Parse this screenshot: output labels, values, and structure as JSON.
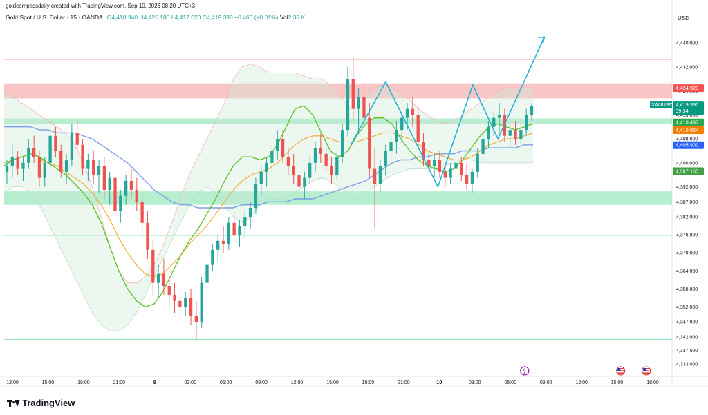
{
  "header": {
    "credit": "goldcompassdaily created with TradingView.com, Sep 10, 2026 08:20 UTC+3",
    "symbol": "Gold Spot / U.S. Dollar · 15 · OANDA",
    "o_label": "O",
    "o_value": "4,418.940",
    "h_label": "H",
    "h_value": "4,420.180",
    "l_label": "L",
    "l_value": "4,417.020",
    "c_label": "C",
    "c_value": "4,419.390",
    "change": "+0.460 (+0.01%)",
    "vol_label": "Vol",
    "vol_value": "2.32 K"
  },
  "axis": {
    "currency": "USD"
  },
  "brand": "TradingView",
  "colors": {
    "up": "#26a69a",
    "down": "#ef5350",
    "sma": "#7e9ee8",
    "ema_fast": "#58c21e",
    "ema_slow": "#f4a62a",
    "resistance_zone": "#f7b3b3",
    "support_zone": "#9ee8bf",
    "projection": "#1fb2d6"
  },
  "chart_data": {
    "type": "candlestick",
    "symbol": "XAUUSD",
    "timeframe": "15",
    "ylim": [
      4330,
      4446
    ],
    "y_ticks": [
      4440,
      4432,
      4424,
      4416,
      4408,
      4400,
      4392,
      4387,
      4382,
      4376,
      4370,
      4364,
      4358,
      4352,
      4347,
      4342,
      4337.5,
      4333
    ],
    "y_tick_labels": [
      "4,440.000",
      "4,432.000",
      "4,424.000",
      "4,416.000",
      "4,408.000",
      "4,400.000",
      "4,392.000",
      "4,387.000",
      "4,382.000",
      "4,376.000",
      "4,370.000",
      "4,364.000",
      "4,358.000",
      "4,352.000",
      "4,347.000",
      "4,342.000",
      "4,337.500",
      "4,333.000"
    ],
    "x_ticks": [
      "12:00",
      "15:00",
      "18:00",
      "21:00",
      "9",
      "03:00",
      "06:00",
      "09:00",
      "12:00",
      "15:00",
      "18:00",
      "21:00",
      "10",
      "03:00",
      "06:00",
      "09:00",
      "12:00",
      "15:00",
      "18:00"
    ],
    "price_labels": [
      {
        "label": "",
        "value": "4,424.923",
        "price": 4424.9,
        "color": "#ef5350"
      },
      {
        "label": "XAUUSD",
        "value": "4,419.390",
        "sub": "09:34",
        "price": 4419.4,
        "color": "#089981"
      },
      {
        "label": "",
        "value": "4,413.497",
        "price": 4413.5,
        "color": "#2ba84a"
      },
      {
        "label": "",
        "value": "4,410.864",
        "price": 4410.9,
        "color": "#f57c00"
      },
      {
        "label": "",
        "value": "4,405.900",
        "price": 4405.9,
        "color": "#2962ff"
      },
      {
        "label": "",
        "value": "4,397.165",
        "price": 4397.2,
        "color": "#43a047"
      }
    ],
    "zones": [
      {
        "name": "resistance",
        "from": 4421.5,
        "to": 4426.5
      },
      {
        "name": "support_top",
        "from": 4413.0,
        "to": 4414.8
      },
      {
        "name": "support",
        "from": 4386.0,
        "to": 4390.5
      }
    ],
    "hlines": [
      4434.5,
      4375.8,
      4341.2
    ],
    "candles": [
      [
        4397,
        4401,
        4393,
        4399
      ],
      [
        4399,
        4406,
        4395,
        4402
      ],
      [
        4402,
        4404,
        4396,
        4398
      ],
      [
        4398,
        4402,
        4394,
        4400
      ],
      [
        4400,
        4408,
        4398,
        4405
      ],
      [
        4405,
        4409,
        4400,
        4402
      ],
      [
        4402,
        4404,
        4392,
        4395
      ],
      [
        4395,
        4402,
        4392,
        4400
      ],
      [
        4400,
        4411,
        4398,
        4409
      ],
      [
        4409,
        4412,
        4402,
        4404
      ],
      [
        4404,
        4406,
        4395,
        4397
      ],
      [
        4397,
        4403,
        4393,
        4401
      ],
      [
        4401,
        4413,
        4399,
        4410
      ],
      [
        4410,
        4414,
        4404,
        4406
      ],
      [
        4406,
        4408,
        4396,
        4398
      ],
      [
        4398,
        4403,
        4394,
        4401
      ],
      [
        4401,
        4404,
        4393,
        4396
      ],
      [
        4396,
        4401,
        4390,
        4399
      ],
      [
        4399,
        4402,
        4388,
        4391
      ],
      [
        4391,
        4397,
        4386,
        4395
      ],
      [
        4395,
        4398,
        4381,
        4384
      ],
      [
        4384,
        4391,
        4380,
        4389
      ],
      [
        4389,
        4396,
        4386,
        4394
      ],
      [
        4394,
        4398,
        4388,
        4391
      ],
      [
        4391,
        4395,
        4384,
        4387
      ],
      [
        4387,
        4390,
        4376,
        4380
      ],
      [
        4380,
        4384,
        4368,
        4371
      ],
      [
        4371,
        4374,
        4356,
        4360
      ],
      [
        4360,
        4366,
        4355,
        4363
      ],
      [
        4363,
        4368,
        4356,
        4359
      ],
      [
        4359,
        4362,
        4352,
        4356
      ],
      [
        4356,
        4360,
        4350,
        4354
      ],
      [
        4354,
        4358,
        4348,
        4352
      ],
      [
        4352,
        4357,
        4349,
        4355
      ],
      [
        4355,
        4358,
        4346,
        4349
      ],
      [
        4349,
        4354,
        4341,
        4347
      ],
      [
        4347,
        4362,
        4345,
        4360
      ],
      [
        4360,
        4368,
        4357,
        4366
      ],
      [
        4366,
        4373,
        4364,
        4371
      ],
      [
        4371,
        4376,
        4367,
        4374
      ],
      [
        4374,
        4379,
        4370,
        4373
      ],
      [
        4373,
        4382,
        4371,
        4380
      ],
      [
        4380,
        4384,
        4374,
        4376
      ],
      [
        4376,
        4381,
        4372,
        4379
      ],
      [
        4379,
        4384,
        4375,
        4382
      ],
      [
        4382,
        4387,
        4378,
        4385
      ],
      [
        4385,
        4395,
        4383,
        4393
      ],
      [
        4393,
        4399,
        4389,
        4397
      ],
      [
        4397,
        4402,
        4392,
        4400
      ],
      [
        4400,
        4406,
        4397,
        4404
      ],
      [
        4404,
        4411,
        4401,
        4408
      ],
      [
        4408,
        4411,
        4400,
        4402
      ],
      [
        4402,
        4405,
        4396,
        4399
      ],
      [
        4399,
        4403,
        4393,
        4396
      ],
      [
        4396,
        4399,
        4389,
        4392
      ],
      [
        4392,
        4397,
        4388,
        4395
      ],
      [
        4395,
        4402,
        4393,
        4400
      ],
      [
        4400,
        4407,
        4397,
        4405
      ],
      [
        4405,
        4410,
        4400,
        4403
      ],
      [
        4403,
        4406,
        4397,
        4399
      ],
      [
        4399,
        4402,
        4393,
        4396
      ],
      [
        4396,
        4404,
        4394,
        4402
      ],
      [
        4402,
        4413,
        4400,
        4411
      ],
      [
        4411,
        4432,
        4409,
        4428
      ],
      [
        4428,
        4435,
        4414,
        4418
      ],
      [
        4418,
        4425,
        4410,
        4422
      ],
      [
        4422,
        4427,
        4412,
        4415
      ],
      [
        4415,
        4420,
        4395,
        4398
      ],
      [
        4398,
        4405,
        4378,
        4393
      ],
      [
        4393,
        4401,
        4390,
        4399
      ],
      [
        4399,
        4406,
        4396,
        4404
      ],
      [
        4404,
        4410,
        4401,
        4407
      ],
      [
        4407,
        4414,
        4403,
        4411
      ],
      [
        4411,
        4417,
        4407,
        4415
      ],
      [
        4415,
        4420,
        4411,
        4418
      ],
      [
        4418,
        4422,
        4412,
        4416
      ],
      [
        4416,
        4419,
        4405,
        4407
      ],
      [
        4407,
        4410,
        4399,
        4401
      ],
      [
        4401,
        4404,
        4396,
        4399
      ],
      [
        4399,
        4403,
        4395,
        4401
      ],
      [
        4401,
        4404,
        4395,
        4397
      ],
      [
        4397,
        4400,
        4392,
        4395
      ],
      [
        4395,
        4400,
        4393,
        4398
      ],
      [
        4398,
        4402,
        4395,
        4400
      ],
      [
        4400,
        4402,
        4394,
        4396
      ],
      [
        4396,
        4400,
        4391,
        4393
      ],
      [
        4393,
        4398,
        4390,
        4397
      ],
      [
        4397,
        4405,
        4395,
        4403
      ],
      [
        4403,
        4410,
        4400,
        4408
      ],
      [
        4408,
        4414,
        4405,
        4412
      ],
      [
        4412,
        4417,
        4409,
        4415
      ],
      [
        4415,
        4420,
        4410,
        4416
      ],
      [
        4416,
        4418,
        4407,
        4409
      ],
      [
        4409,
        4413,
        4405,
        4411
      ],
      [
        4411,
        4414,
        4406,
        4408
      ],
      [
        4408,
        4413,
        4406,
        4411
      ],
      [
        4411,
        4418,
        4409,
        4416
      ],
      [
        4416,
        4420,
        4414,
        4419
      ]
    ],
    "sma": [
      4412,
      4412,
      4412,
      4412,
      4411,
      4411,
      4410,
      4410,
      4410,
      4409,
      4408,
      4406,
      4404,
      4402,
      4400,
      4397,
      4394,
      4391,
      4389,
      4387,
      4386,
      4386,
      4385,
      4385,
      4385,
      4385,
      4385,
      4386,
      4386,
      4386,
      4387,
      4387,
      4387,
      4388,
      4388,
      4388,
      4389,
      4390,
      4391,
      4392,
      4393,
      4394,
      4396,
      4398,
      4400,
      4401,
      4401,
      4402,
      4402,
      4403,
      4403,
      4403,
      4404,
      4404,
      4404,
      4405,
      4405,
      4405,
      4405,
      4406,
      4406
    ],
    "ema_fast": [
      4399,
      4401,
      4402,
      4403,
      4402,
      4400,
      4398,
      4396,
      4393,
      4390,
      4386,
      4380,
      4372,
      4364,
      4358,
      4354,
      4352,
      4353,
      4357,
      4363,
      4369,
      4374,
      4378,
      4383,
      4388,
      4394,
      4399,
      4402,
      4402,
      4401,
      4402,
      4406,
      4412,
      4418,
      4419,
      4416,
      4410,
      4404,
      4402,
      4404,
      4409,
      4413,
      4415,
      4415,
      4413,
      4408,
      4404,
      4401,
      4399,
      4398,
      4397,
      4398,
      4401,
      4405,
      4409,
      4412,
      4413,
      4412,
      4411,
      4412,
      4413
    ],
    "ema_slow": [
      4400,
      4401,
      4401,
      4401,
      4401,
      4400,
      4399,
      4397,
      4395,
      4393,
      4390,
      4386,
      4381,
      4375,
      4370,
      4366,
      4363,
      4362,
      4363,
      4366,
      4369,
      4373,
      4376,
      4379,
      4383,
      4387,
      4391,
      4394,
      4396,
      4397,
      4398,
      4400,
      4403,
      4406,
      4408,
      4409,
      4409,
      4408,
      4407,
      4407,
      4407,
      4408,
      4409,
      4410,
      4410,
      4409,
      4408,
      4406,
      4404,
      4403,
      4402,
      4401,
      4401,
      4402,
      4404,
      4406,
      4407,
      4408,
      4408,
      4409,
      4410
    ],
    "bb_upper": [
      4424,
      4422,
      4420,
      4418,
      4416,
      4414,
      4412,
      4410,
      4406,
      4400,
      4392,
      4382,
      4372,
      4364,
      4360,
      4360,
      4362,
      4366,
      4372,
      4380,
      4388,
      4396,
      4402,
      4408,
      4414,
      4420,
      4428,
      4432,
      4433,
      4432,
      4430,
      4430,
      4430,
      4430,
      4429,
      4428,
      4428,
      4426,
      4423,
      4419,
      4419,
      4422,
      4425,
      4426,
      4425,
      4423,
      4421,
      4418,
      4416,
      4414,
      4413,
      4414,
      4416,
      4418,
      4420,
      4422,
      4424,
      4425,
      4425,
      4425,
      4425
    ],
    "bb_lower": [
      4390,
      4392,
      4392,
      4390,
      4386,
      4380,
      4374,
      4368,
      4362,
      4356,
      4350,
      4346,
      4344,
      4344,
      4346,
      4350,
      4356,
      4362,
      4368,
      4374,
      4380,
      4386,
      4390,
      4392,
      4390,
      4386,
      4382,
      4380,
      4382,
      4386,
      4388,
      4388,
      4388,
      4390,
      4392,
      4394,
      4395,
      4394,
      4392,
      4390,
      4388,
      4390,
      4392,
      4394,
      4396,
      4397,
      4398,
      4398,
      4398,
      4398,
      4399,
      4400,
      4401,
      4401,
      4400,
      4400,
      4400,
      4400,
      4400,
      4400,
      4400
    ],
    "markers": [
      {
        "type": "dividend",
        "at": 0.8,
        "color": "#9c27b0"
      },
      {
        "type": "us-event",
        "at": 0.95
      },
      {
        "type": "us-event",
        "at": 0.99
      }
    ],
    "pattern_points": [
      [
        0.0,
        4406
      ],
      [
        0.18,
        4427
      ],
      [
        0.45,
        4392
      ],
      [
        0.63,
        4426
      ],
      [
        0.76,
        4408
      ],
      [
        1.0,
        4442
      ]
    ]
  }
}
